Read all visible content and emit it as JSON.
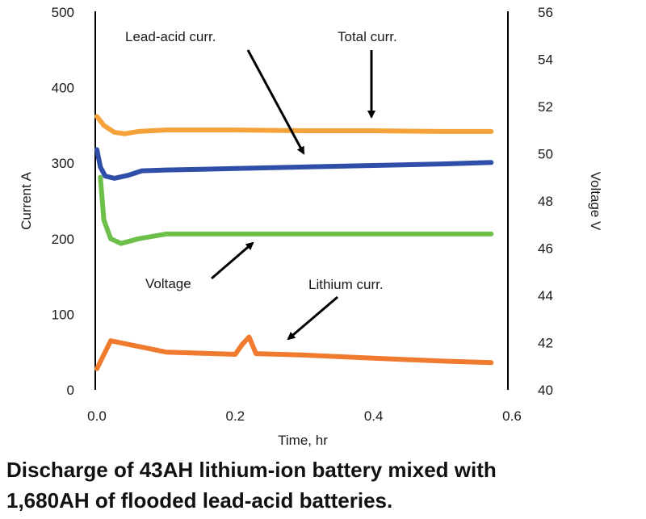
{
  "chart_data": {
    "type": "line",
    "caption_line1": "Discharge of 43AH lithium-ion battery mixed with",
    "caption_line2": "1,680AH of flooded lead-acid batteries.",
    "xlabel": "Time, hr",
    "ylabel_left": "Current A",
    "ylabel_right": "Voltage V",
    "xlim": [
      0,
      0.6
    ],
    "ylim_left": [
      0,
      500
    ],
    "ylim_right": [
      40,
      56
    ],
    "x_ticks": [
      "0.0",
      "0.2",
      "0.4",
      "0.6"
    ],
    "x_tick_values": [
      0,
      0.2,
      0.4,
      0.6
    ],
    "y_left_ticks": [
      "0",
      "100",
      "200",
      "300",
      "400",
      "500"
    ],
    "y_left_tick_values": [
      0,
      100,
      200,
      300,
      400,
      500
    ],
    "y_right_ticks": [
      "40",
      "42",
      "44",
      "46",
      "48",
      "50",
      "52",
      "54",
      "56"
    ],
    "y_right_tick_values": [
      40,
      42,
      44,
      46,
      48,
      50,
      52,
      54,
      56
    ],
    "grid": false,
    "series": [
      {
        "name": "Total curr.",
        "axis": "left",
        "color": "#f5a23a",
        "points": [
          [
            0,
            362
          ],
          [
            0.01,
            350
          ],
          [
            0.025,
            341
          ],
          [
            0.04,
            339
          ],
          [
            0.06,
            342
          ],
          [
            0.1,
            344
          ],
          [
            0.2,
            344
          ],
          [
            0.3,
            343
          ],
          [
            0.4,
            343
          ],
          [
            0.5,
            342
          ],
          [
            0.57,
            342
          ]
        ]
      },
      {
        "name": "Lead-acid curr.",
        "axis": "left",
        "color": "#2e4ea8",
        "points": [
          [
            0,
            318
          ],
          [
            0.005,
            295
          ],
          [
            0.012,
            283
          ],
          [
            0.025,
            280
          ],
          [
            0.045,
            284
          ],
          [
            0.065,
            290
          ],
          [
            0.1,
            291
          ],
          [
            0.2,
            293
          ],
          [
            0.3,
            295
          ],
          [
            0.4,
            297
          ],
          [
            0.5,
            299
          ],
          [
            0.57,
            301
          ]
        ]
      },
      {
        "name": "Voltage",
        "axis": "right",
        "color": "#6cc04a",
        "points": [
          [
            0.005,
            49.0
          ],
          [
            0.01,
            47.2
          ],
          [
            0.02,
            46.4
          ],
          [
            0.035,
            46.2
          ],
          [
            0.06,
            46.4
          ],
          [
            0.1,
            46.6
          ],
          [
            0.2,
            46.6
          ],
          [
            0.3,
            46.6
          ],
          [
            0.4,
            46.6
          ],
          [
            0.5,
            46.6
          ],
          [
            0.57,
            46.6
          ]
        ]
      },
      {
        "name": "Lithium curr.",
        "axis": "left",
        "color": "#f07a2e",
        "points": [
          [
            0,
            28
          ],
          [
            0.02,
            65
          ],
          [
            0.1,
            50
          ],
          [
            0.2,
            47
          ],
          [
            0.21,
            60
          ],
          [
            0.22,
            70
          ],
          [
            0.23,
            48
          ],
          [
            0.3,
            46
          ],
          [
            0.4,
            42
          ],
          [
            0.5,
            38
          ],
          [
            0.57,
            36
          ]
        ]
      }
    ],
    "annotations": [
      {
        "text": "Lead-acid curr.",
        "target": "Lead-acid curr."
      },
      {
        "text": "Total curr.",
        "target": "Total curr."
      },
      {
        "text": "Voltage",
        "target": "Voltage"
      },
      {
        "text": "Lithium curr.",
        "target": "Lithium curr."
      }
    ]
  }
}
